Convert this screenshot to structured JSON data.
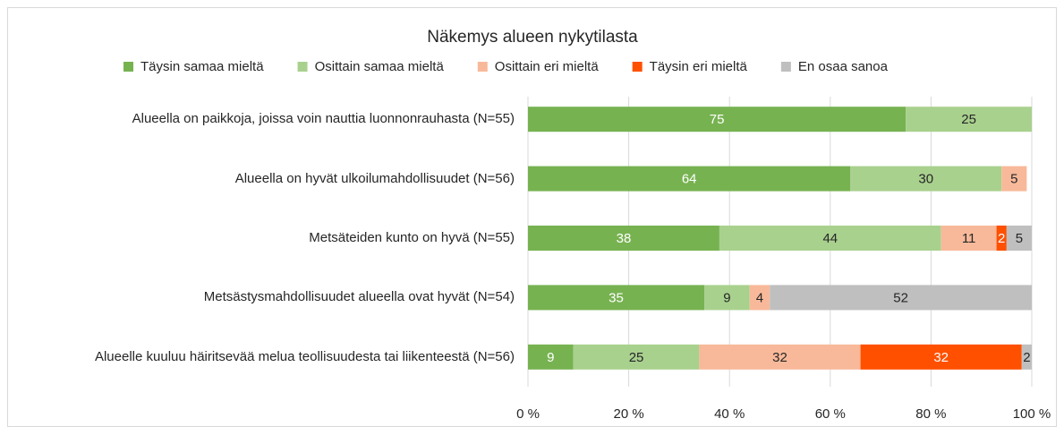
{
  "chart_data": {
    "type": "stacked_barh",
    "title": "Näkemys alueen nykytilasta",
    "categories": [
      "Alueella on paikkoja, joissa voin nauttia luonnonrauhasta (N=55)",
      "Alueella on hyvät ulkoilumahdollisuudet (N=56)",
      "Metsäteiden kunto on hyvä (N=55)",
      "Metsästysmahdollisuudet alueella ovat hyvät (N=54)",
      "Alueelle kuuluu häiritsevää melua teollisuudesta tai liikenteestä (N=56)"
    ],
    "series": [
      {
        "name": "Täysin samaa mieltä",
        "color": "#77b251",
        "label_color": "#ffffff",
        "values": [
          75,
          64,
          38,
          35,
          9
        ]
      },
      {
        "name": "Osittain samaa mieltä",
        "color": "#a9d18e",
        "label_color": "#262626",
        "values": [
          25,
          30,
          44,
          9,
          25
        ]
      },
      {
        "name": "Osittain eri mieltä",
        "color": "#f8b99a",
        "label_color": "#262626",
        "values": [
          null,
          5,
          11,
          4,
          32
        ]
      },
      {
        "name": "Täysin eri mieltä",
        "color": "#ff5000",
        "label_color": "#ffffff",
        "values": [
          null,
          null,
          2,
          null,
          32
        ]
      },
      {
        "name": "En osaa sanoa",
        "color": "#bfbfbf",
        "label_color": "#262626",
        "values": [
          null,
          null,
          5,
          52,
          2
        ]
      }
    ],
    "xlim": [
      0,
      100
    ],
    "xticks": [
      {
        "value": 0,
        "label": "0 %"
      },
      {
        "value": 20,
        "label": "20 %"
      },
      {
        "value": 40,
        "label": "40 %"
      },
      {
        "value": 60,
        "label": "60 %"
      },
      {
        "value": 80,
        "label": "80 %"
      },
      {
        "value": 100,
        "label": "100 %"
      }
    ],
    "grid": true,
    "legend": "top"
  }
}
